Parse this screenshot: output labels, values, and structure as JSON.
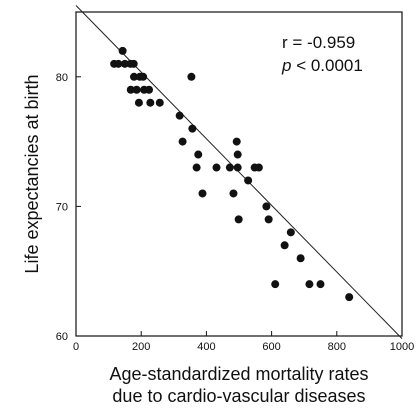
{
  "chart_data": {
    "type": "scatter",
    "xlabel_line1": "Age-standardized mortality rates",
    "xlabel_line2": "due to cardio-vascular diseases",
    "ylabel": "Life expectancies at birth",
    "xlim": [
      0,
      1000
    ],
    "ylim": [
      60,
      85
    ],
    "xticks": [
      0,
      200,
      400,
      600,
      800,
      1000
    ],
    "yticks": [
      60,
      70,
      80
    ],
    "xtick_labels": [
      "0",
      "200",
      "400",
      "600",
      "800",
      "1000"
    ],
    "ytick_labels": [
      "60",
      "70",
      "80"
    ],
    "annotation_r": "r = -0.959",
    "annotation_p_symbol": "p",
    "annotation_p_rest": " < 0.0001",
    "regression_line": {
      "x": [
        0,
        1000
      ],
      "y": [
        85.5,
        59.8
      ]
    },
    "grid": false,
    "legend": false,
    "points": [
      {
        "x": 117,
        "y": 81
      },
      {
        "x": 130,
        "y": 81
      },
      {
        "x": 143,
        "y": 82
      },
      {
        "x": 150,
        "y": 81
      },
      {
        "x": 167,
        "y": 81
      },
      {
        "x": 177,
        "y": 81
      },
      {
        "x": 168,
        "y": 79
      },
      {
        "x": 178,
        "y": 80
      },
      {
        "x": 186,
        "y": 79
      },
      {
        "x": 196,
        "y": 80
      },
      {
        "x": 206,
        "y": 80
      },
      {
        "x": 193,
        "y": 78
      },
      {
        "x": 209,
        "y": 79
      },
      {
        "x": 228,
        "y": 78
      },
      {
        "x": 224,
        "y": 79
      },
      {
        "x": 257,
        "y": 78
      },
      {
        "x": 318,
        "y": 77
      },
      {
        "x": 327,
        "y": 75
      },
      {
        "x": 354,
        "y": 80
      },
      {
        "x": 357,
        "y": 76
      },
      {
        "x": 370,
        "y": 73
      },
      {
        "x": 375,
        "y": 74
      },
      {
        "x": 388,
        "y": 71
      },
      {
        "x": 431,
        "y": 73
      },
      {
        "x": 472,
        "y": 73
      },
      {
        "x": 483,
        "y": 71
      },
      {
        "x": 493,
        "y": 75
      },
      {
        "x": 496,
        "y": 74
      },
      {
        "x": 496,
        "y": 73
      },
      {
        "x": 499,
        "y": 69
      },
      {
        "x": 528,
        "y": 72
      },
      {
        "x": 548,
        "y": 73
      },
      {
        "x": 561,
        "y": 73
      },
      {
        "x": 584,
        "y": 70
      },
      {
        "x": 591,
        "y": 69
      },
      {
        "x": 611,
        "y": 64
      },
      {
        "x": 640,
        "y": 67
      },
      {
        "x": 659,
        "y": 68
      },
      {
        "x": 689,
        "y": 66
      },
      {
        "x": 716,
        "y": 64
      },
      {
        "x": 750,
        "y": 64
      },
      {
        "x": 838,
        "y": 63
      }
    ]
  },
  "colors": {
    "point": "#111111",
    "axis": "#111111",
    "line": "#222222",
    "background": "#ffffff"
  }
}
